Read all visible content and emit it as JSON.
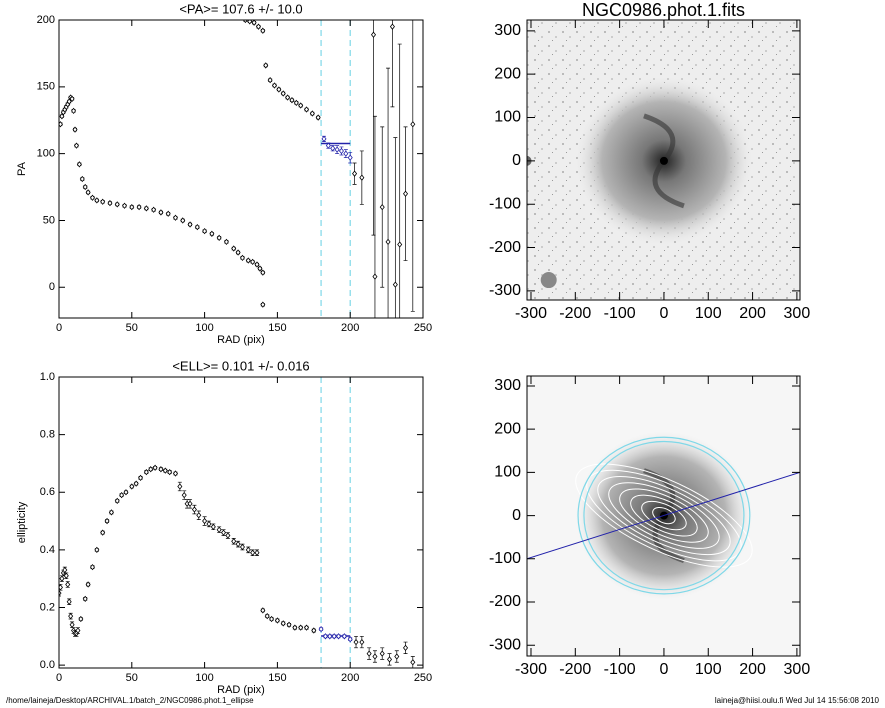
{
  "chart_data": [
    {
      "type": "scatter",
      "title": "<PA>= 107.6 +/-  10.0",
      "xlabel": "RAD (pix)",
      "ylabel": "PA",
      "xlim": [
        0,
        250
      ],
      "ylim": [
        -23,
        200
      ],
      "xticks": [
        0,
        50,
        100,
        150,
        200,
        250
      ],
      "yticks": [
        0,
        50,
        100,
        150,
        200
      ],
      "color": "#000000",
      "highlight_color": "#2222aa",
      "vlines": [
        180,
        200
      ],
      "vline_color": "#7fd8e8",
      "mean": 107.6,
      "mean_range": [
        180,
        200
      ],
      "x": [
        1,
        2,
        3,
        4,
        5,
        6,
        7,
        8,
        9,
        10,
        11,
        12,
        14,
        16,
        18,
        20,
        23,
        26,
        30,
        35,
        40,
        45,
        50,
        55,
        60,
        65,
        70,
        75,
        80,
        85,
        90,
        95,
        100,
        105,
        110,
        115,
        120,
        123,
        126,
        130,
        133,
        136,
        138,
        140,
        140,
        128,
        131,
        134,
        137,
        140,
        142,
        145,
        148,
        151,
        154,
        157,
        160,
        163,
        166,
        170,
        174,
        178,
        182,
        185,
        188,
        191,
        194,
        197,
        200,
        203,
        208,
        216,
        217,
        222,
        226,
        229,
        231,
        234,
        238,
        243
      ],
      "values": [
        122,
        128,
        131,
        133,
        135,
        137,
        139,
        142,
        141,
        132,
        118,
        106,
        92,
        81,
        75,
        71,
        67,
        65,
        64,
        63,
        62,
        61,
        60,
        60,
        59,
        58,
        56,
        55,
        52,
        50,
        47,
        45,
        42,
        40,
        37,
        34,
        29,
        26,
        22,
        20,
        19,
        17,
        14,
        11,
        -13,
        200,
        199,
        198,
        195,
        192,
        166,
        155,
        151,
        148,
        145,
        142,
        140,
        138,
        136,
        133,
        130,
        127,
        111,
        106,
        104,
        103,
        102,
        100,
        97,
        85,
        82,
        189,
        8,
        60,
        34,
        195,
        2,
        32,
        70,
        122
      ],
      "errors": [
        1,
        1,
        1,
        1,
        1,
        1,
        1,
        1,
        1,
        1,
        1,
        1,
        1,
        1,
        1,
        1,
        1,
        1,
        1,
        1,
        1,
        1,
        1,
        1,
        1,
        1,
        1,
        1,
        1,
        1,
        1,
        1,
        1,
        1,
        1,
        1,
        1,
        1,
        1,
        1,
        1,
        1,
        1,
        1,
        1,
        1,
        1,
        1,
        1,
        1,
        1,
        1,
        1,
        1,
        1,
        1,
        1,
        1,
        1,
        1,
        1,
        1,
        2,
        2,
        2,
        3,
        3,
        3,
        4,
        8,
        20,
        150,
        120,
        60,
        130,
        60,
        110,
        150,
        50,
        140
      ]
    },
    {
      "type": "scatter",
      "title": "<ELL>= 0.101 +/-  0.016",
      "xlabel": "RAD (pix)",
      "ylabel": "ellipticity",
      "xlim": [
        0,
        250
      ],
      "ylim": [
        -0.01,
        1.0
      ],
      "xticks": [
        0,
        50,
        100,
        150,
        200,
        250
      ],
      "yticks": [
        {
          "value": 0,
          "label": "0.0"
        },
        0.2,
        0.4,
        0.6,
        0.8,
        {
          "value": 1,
          "label": "1.0"
        }
      ],
      "color": "#000000",
      "highlight_color": "#2222aa",
      "vlines": [
        180,
        200
      ],
      "vline_color": "#7fd8e8",
      "mean": 0.101,
      "mean_range": [
        180,
        200
      ],
      "x": [
        0,
        1,
        2,
        3,
        4,
        5,
        6,
        7,
        8,
        9,
        10,
        11,
        12,
        13,
        15,
        18,
        20,
        23,
        26,
        30,
        33,
        36,
        40,
        43,
        46,
        50,
        53,
        56,
        60,
        63,
        66,
        70,
        73,
        76,
        80,
        83,
        86,
        88,
        90,
        93,
        96,
        100,
        103,
        106,
        110,
        113,
        116,
        120,
        123,
        126,
        130,
        133,
        136,
        140,
        143,
        146,
        150,
        154,
        158,
        162,
        166,
        170,
        175,
        180,
        183,
        186,
        189,
        192,
        196,
        200,
        204,
        208,
        213,
        217,
        222,
        227,
        232,
        238,
        243
      ],
      "values": [
        0.25,
        0.27,
        0.3,
        0.32,
        0.33,
        0.31,
        0.28,
        0.22,
        0.17,
        0.14,
        0.12,
        0.11,
        0.11,
        0.12,
        0.16,
        0.23,
        0.28,
        0.34,
        0.4,
        0.46,
        0.5,
        0.53,
        0.57,
        0.59,
        0.6,
        0.62,
        0.63,
        0.65,
        0.67,
        0.68,
        0.685,
        0.68,
        0.675,
        0.67,
        0.665,
        0.62,
        0.59,
        0.56,
        0.56,
        0.54,
        0.52,
        0.5,
        0.49,
        0.48,
        0.47,
        0.46,
        0.45,
        0.43,
        0.42,
        0.41,
        0.4,
        0.39,
        0.39,
        0.19,
        0.17,
        0.16,
        0.155,
        0.145,
        0.14,
        0.13,
        0.13,
        0.13,
        0.12,
        0.125,
        0.1,
        0.1,
        0.1,
        0.1,
        0.1,
        0.09,
        0.08,
        0.08,
        0.04,
        0.03,
        0.04,
        0.02,
        0.03,
        0.06,
        0.01
      ],
      "errors": [
        0.01,
        0.01,
        0.01,
        0.01,
        0.01,
        0.01,
        0.01,
        0.01,
        0.01,
        0.01,
        0.01,
        0.01,
        0.01,
        0.01,
        0.005,
        0.005,
        0.005,
        0.005,
        0.005,
        0.005,
        0.005,
        0.005,
        0.005,
        0.005,
        0.005,
        0.005,
        0.005,
        0.005,
        0.005,
        0.005,
        0.005,
        0.005,
        0.005,
        0.005,
        0.005,
        0.015,
        0.015,
        0.015,
        0.015,
        0.015,
        0.015,
        0.015,
        0.01,
        0.01,
        0.01,
        0.01,
        0.01,
        0.01,
        0.01,
        0.01,
        0.01,
        0.01,
        0.01,
        0.005,
        0.005,
        0.005,
        0.005,
        0.005,
        0.005,
        0.005,
        0.005,
        0.005,
        0.005,
        0.005,
        0.005,
        0.005,
        0.005,
        0.005,
        0.005,
        0.005,
        0.02,
        0.02,
        0.02,
        0.02,
        0.02,
        0.02,
        0.02,
        0.02,
        0.02
      ]
    },
    {
      "type": "image",
      "title": "NGC0986.phot.1.fits",
      "xlim": [
        -309,
        307
      ],
      "ylim": [
        -321,
        325
      ],
      "xticks": [
        -300,
        -200,
        -100,
        0,
        100,
        200,
        300
      ],
      "yticks": [
        -300,
        -200,
        -100,
        0,
        100,
        200,
        300
      ]
    },
    {
      "type": "image",
      "overlay": true,
      "xlim": [
        -309,
        307
      ],
      "ylim": [
        -325,
        323
      ],
      "xticks": [
        -300,
        -200,
        -100,
        0,
        100,
        200,
        300
      ],
      "yticks": [
        -300,
        -200,
        -100,
        0,
        100,
        200,
        300
      ]
    }
  ],
  "footer": {
    "path": "/home/laineja/Desktop/ARCHIVAL.1/batch_2/NGC0986.phot.1_ellipse",
    "stamp": "laineja@hiisi.oulu.fi  Wed Jul 14 15:56:08 2010"
  }
}
